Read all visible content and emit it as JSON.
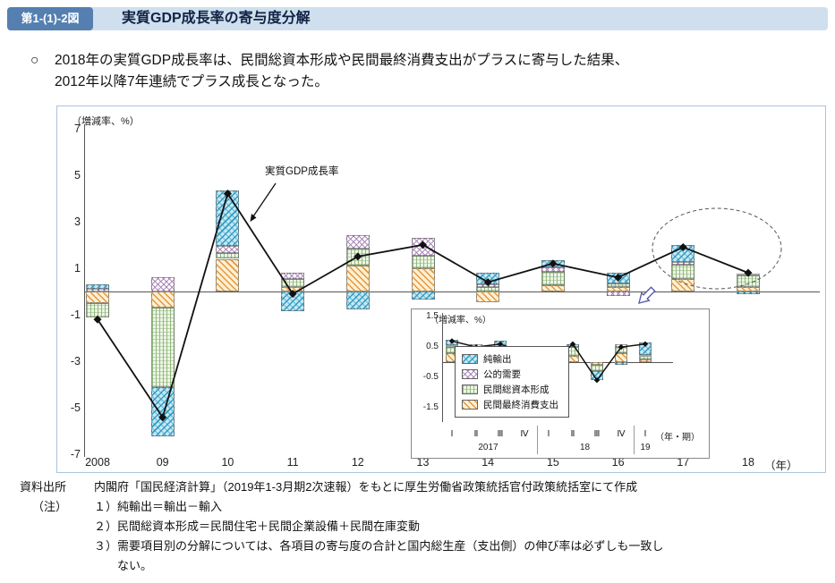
{
  "header": {
    "figure_label": "第1-(1)-2図",
    "title": "実質GDP成長率の寄与度分解"
  },
  "intro": {
    "marker": "○",
    "line1": "2018年の実質GDP成長率は、民間総資本形成や民間最終消費支出がプラスに寄与した結果、",
    "line2": "2012年以降7年連続でプラス成長となった。"
  },
  "chart_data": [
    {
      "id": "main",
      "type": "bar",
      "stacked": true,
      "overlay": "line",
      "unit_label": "（増減率、%）",
      "categories": [
        "2008",
        "09",
        "10",
        "11",
        "12",
        "13",
        "14",
        "15",
        "16",
        "17",
        "18"
      ],
      "x_axis_suffix": "（年）",
      "ylim": [
        -7,
        7
      ],
      "yticks": [
        7,
        5,
        3,
        1,
        -1,
        -3,
        -5,
        -7
      ],
      "grid": false,
      "series": [
        {
          "name": "民間最終消費支出",
          "pattern": "cons",
          "values": [
            -0.5,
            -0.7,
            1.4,
            0.2,
            1.1,
            1.0,
            -0.45,
            0.25,
            0.2,
            0.55,
            0.2
          ]
        },
        {
          "name": "民間総資本形成",
          "pattern": "cap",
          "values": [
            -0.6,
            -3.4,
            0.25,
            0.35,
            0.75,
            0.55,
            0.2,
            0.6,
            0.15,
            0.6,
            0.5
          ]
        },
        {
          "name": "公的需要",
          "pattern": "pub",
          "values": [
            0.1,
            0.6,
            0.3,
            0.25,
            0.55,
            0.75,
            0.1,
            0.2,
            -0.2,
            0.1,
            0.05
          ]
        },
        {
          "name": "純輸出",
          "pattern": "net",
          "values": [
            0.2,
            -2.1,
            2.4,
            -0.85,
            -0.75,
            -0.35,
            0.5,
            0.3,
            0.45,
            0.75,
            -0.1
          ]
        }
      ],
      "line_series": {
        "name": "実質GDP成長率",
        "values": [
          -1.2,
          -5.4,
          4.2,
          -0.1,
          1.5,
          2.0,
          0.4,
          1.2,
          0.6,
          1.9,
          0.8
        ]
      },
      "annotation": "実質GDP成長率"
    },
    {
      "id": "inset",
      "type": "bar",
      "stacked": true,
      "overlay": "line",
      "unit_label": "（増減率、%）",
      "categories": [
        "Ⅰ",
        "Ⅱ",
        "Ⅲ",
        "Ⅳ",
        "Ⅰ",
        "Ⅱ",
        "Ⅲ",
        "Ⅳ",
        "Ⅰ"
      ],
      "year_groups": [
        {
          "label": "2017",
          "count": 4
        },
        {
          "label": "18",
          "count": 4
        },
        {
          "label": "19",
          "count": 1
        }
      ],
      "x_axis_suffix": "（年・期）",
      "ylim": [
        -1.5,
        1.5
      ],
      "yticks": [
        1.5,
        0.5,
        -0.5,
        -1.5
      ],
      "grid": false,
      "series": [
        {
          "name": "民間最終消費支出",
          "pattern": "cons",
          "values": [
            0.3,
            0.35,
            -0.1,
            0.2,
            -0.1,
            0.2,
            -0.1,
            0.3,
            0.1
          ]
        },
        {
          "name": "民間総資本形成",
          "pattern": "cap",
          "values": [
            0.2,
            0.15,
            0.2,
            0.25,
            0.05,
            0.3,
            -0.2,
            0.2,
            0.1
          ]
        },
        {
          "name": "公的需要",
          "pattern": "pub",
          "values": [
            0.05,
            0.1,
            0.05,
            0.0,
            0.0,
            0.0,
            0.0,
            0.1,
            0.05
          ]
        },
        {
          "name": "純輸出",
          "pattern": "net",
          "values": [
            0.2,
            -0.2,
            0.45,
            -0.15,
            -0.1,
            0.1,
            -0.3,
            -0.1,
            0.4
          ]
        }
      ],
      "line_series": {
        "name": "実質GDP成長率",
        "values": [
          0.7,
          0.5,
          0.6,
          0.3,
          -0.1,
          0.6,
          -0.6,
          0.5,
          0.6
        ]
      }
    }
  ],
  "legend": {
    "items": [
      {
        "label": "純輸出",
        "pattern": "net",
        "color": "#2494be"
      },
      {
        "label": "公的需要",
        "pattern": "pub",
        "color": "#a076b0"
      },
      {
        "label": "民間総資本形成",
        "pattern": "cap",
        "color": "#8ab474"
      },
      {
        "label": "民間最終消費支出",
        "pattern": "cons",
        "color": "#e29234"
      }
    ]
  },
  "footer": {
    "source_label": "資料出所",
    "source_text": "内閣府「国民経済計算」（2019年1-3月期2次速報）をもとに厚生労働省政策統括官付政策統括室にて作成",
    "note_label": "（注）",
    "notes": [
      "１）純輸出＝輸出－輸入",
      "２）民間総資本形成＝民間住宅＋民間企業設備＋民間在庫変動",
      "３）需要項目別の分解については、各項目の寄与度の合計と国内総生産（支出側）の伸び率は必ずしも一致し",
      "ない。"
    ]
  }
}
